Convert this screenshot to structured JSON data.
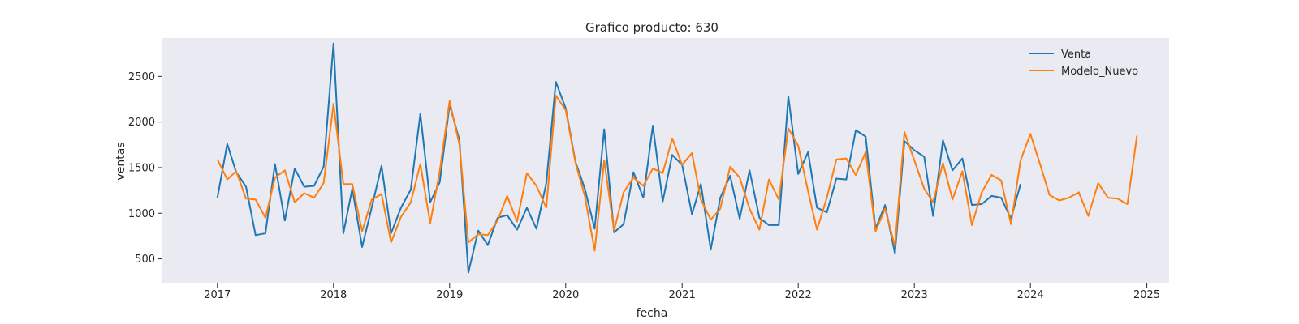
{
  "chart_data": {
    "type": "line",
    "title": "Grafico producto: 630",
    "xlabel": "fecha",
    "ylabel": "ventas",
    "xlim": [
      "2016-07-12",
      "2025-03-12"
    ],
    "ylim": [
      230,
      2920
    ],
    "x_ticks": [
      "2017",
      "2018",
      "2019",
      "2020",
      "2021",
      "2022",
      "2023",
      "2024",
      "2025"
    ],
    "y_ticks": [
      500,
      1000,
      1500,
      2000,
      2500
    ],
    "grid": false,
    "legend_position": "top-right",
    "background": "#eaeaf2",
    "series": [
      {
        "name": "Venta",
        "color": "#1f77b4",
        "start": "2017-01",
        "values": [
          1170,
          1760,
          1450,
          1290,
          760,
          780,
          1540,
          920,
          1490,
          1290,
          1300,
          1510,
          2860,
          780,
          1270,
          630,
          1060,
          1520,
          780,
          1060,
          1260,
          2090,
          1120,
          1340,
          2190,
          1800,
          350,
          810,
          650,
          950,
          980,
          820,
          1060,
          830,
          1330,
          2440,
          2150,
          1560,
          1270,
          830,
          1920,
          790,
          880,
          1450,
          1170,
          1960,
          1130,
          1640,
          1530,
          990,
          1320,
          600,
          1170,
          1410,
          940,
          1470,
          950,
          870,
          870,
          2280,
          1430,
          1670,
          1060,
          1010,
          1380,
          1370,
          1910,
          1840,
          830,
          1090,
          560,
          1790,
          1690,
          1620,
          970,
          1800,
          1470,
          1600,
          1090,
          1100,
          1190,
          1170,
          940,
          1320
        ]
      },
      {
        "name": "Modelo_Nuevo",
        "color": "#ff7f0e",
        "start": "2017-01",
        "values": [
          1590,
          1370,
          1460,
          1160,
          1150,
          950,
          1390,
          1470,
          1120,
          1220,
          1170,
          1330,
          2200,
          1320,
          1320,
          800,
          1150,
          1210,
          680,
          960,
          1120,
          1540,
          890,
          1460,
          2230,
          1750,
          680,
          770,
          760,
          920,
          1190,
          910,
          1440,
          1300,
          1060,
          2290,
          2130,
          1550,
          1190,
          590,
          1580,
          810,
          1230,
          1390,
          1300,
          1490,
          1440,
          1820,
          1530,
          1660,
          1150,
          930,
          1050,
          1510,
          1390,
          1050,
          820,
          1370,
          1150,
          1930,
          1740,
          1240,
          820,
          1170,
          1590,
          1600,
          1420,
          1670,
          800,
          1050,
          640,
          1890,
          1580,
          1270,
          1120,
          1550,
          1150,
          1460,
          870,
          1230,
          1420,
          1360,
          880,
          1580,
          1870,
          1530,
          1200,
          1140,
          1170,
          1230,
          970,
          1330,
          1170,
          1160,
          1100,
          1850
        ]
      }
    ]
  }
}
